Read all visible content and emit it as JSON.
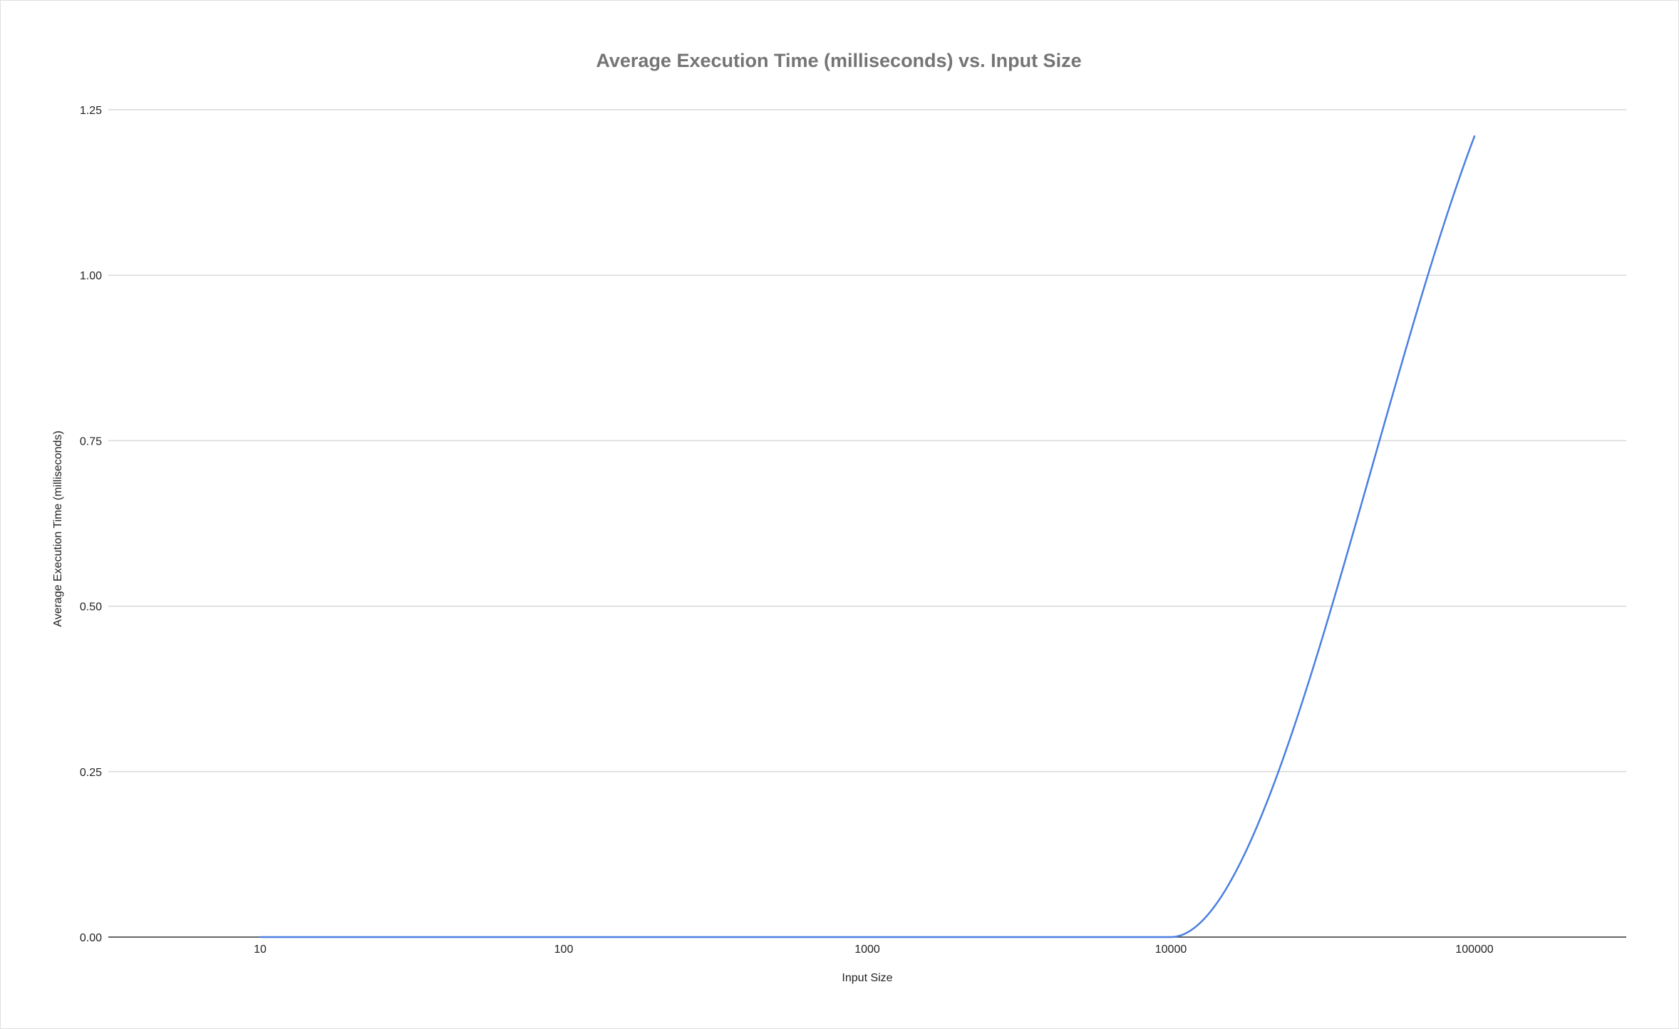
{
  "chart_data": {
    "type": "line",
    "title": "Average Execution Time (milliseconds) vs. Input Size",
    "xlabel": "Input Size",
    "ylabel": "Average Execution Time (milliseconds)",
    "x_scale": "log",
    "x": [
      10,
      100,
      1000,
      10000,
      100000
    ],
    "x_tick_labels": [
      "10",
      "100",
      "1000",
      "10000",
      "100000"
    ],
    "y_ticks": [
      0,
      0.25,
      0.5,
      0.75,
      1.0,
      1.25
    ],
    "y_tick_labels": [
      "0.00",
      "0.25",
      "0.50",
      "0.75",
      "1.00",
      "1.25"
    ],
    "ylim": [
      0,
      1.25
    ],
    "grid": true,
    "legend": "none",
    "smooth": true,
    "series": [
      {
        "values": [
          0.0,
          0.0,
          0.0,
          0.0,
          1.21
        ],
        "color": "#4a7fe0"
      }
    ]
  }
}
